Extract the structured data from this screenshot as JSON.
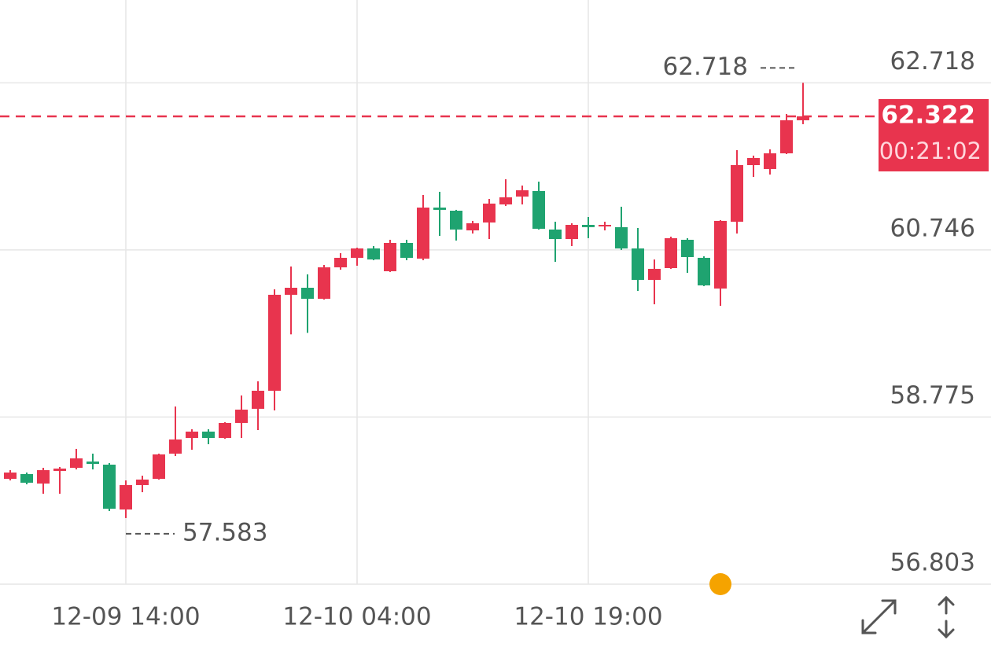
{
  "chart_data": {
    "type": "candlestick",
    "categories": [
      null,
      null,
      null,
      null,
      null,
      null,
      null,
      "12-09 14:00",
      null,
      null,
      null,
      null,
      null,
      null,
      null,
      null,
      null,
      null,
      null,
      null,
      null,
      "12-10 04:00",
      null,
      null,
      null,
      null,
      null,
      null,
      null,
      null,
      null,
      null,
      null,
      null,
      null,
      "12-10 19:00",
      null,
      null,
      null,
      null,
      null,
      null,
      null,
      null,
      null,
      null,
      null,
      null,
      null
    ],
    "open": [
      58.046,
      58.102,
      57.99,
      58.139,
      58.176,
      58.25,
      58.213,
      57.684,
      57.972,
      58.046,
      58.343,
      58.528,
      58.603,
      58.528,
      58.705,
      58.872,
      59.085,
      60.217,
      60.3,
      60.17,
      60.541,
      60.653,
      60.764,
      60.495,
      60.829,
      60.644,
      61.246,
      61.209,
      60.977,
      61.07,
      61.283,
      61.376,
      61.441,
      60.987,
      60.875,
      61.042,
      61.024,
      61.015,
      60.764,
      60.393,
      60.532,
      60.866,
      60.653,
      60.291,
      61.079,
      61.747,
      61.701,
      61.886,
      62.276
    ],
    "high": [
      58.148,
      58.12,
      58.176,
      58.185,
      58.399,
      58.343,
      58.232,
      58.027,
      58.083,
      58.343,
      58.899,
      58.631,
      58.631,
      58.714,
      59.029,
      59.196,
      60.282,
      60.551,
      60.458,
      60.569,
      60.708,
      60.773,
      60.792,
      60.866,
      60.866,
      61.395,
      61.432,
      61.219,
      61.089,
      61.348,
      61.58,
      61.506,
      61.552,
      61.079,
      61.061,
      61.135,
      61.079,
      61.256,
      61.005,
      60.634,
      60.903,
      60.885,
      60.671,
      61.098,
      61.924,
      61.859,
      61.933,
      62.35,
      62.718
    ],
    "low": [
      58.027,
      57.981,
      57.87,
      57.87,
      58.157,
      58.157,
      57.666,
      57.583,
      57.888,
      58.037,
      58.315,
      58.389,
      58.454,
      58.519,
      58.528,
      58.621,
      58.853,
      59.75,
      59.768,
      60.161,
      60.513,
      60.56,
      60.625,
      60.486,
      60.625,
      60.625,
      60.912,
      60.857,
      60.94,
      60.875,
      61.265,
      61.283,
      60.987,
      60.606,
      60.792,
      60.885,
      60.977,
      60.746,
      60.263,
      60.105,
      60.523,
      60.476,
      60.319,
      60.087,
      60.94,
      61.608,
      61.636,
      61.877,
      62.23
    ],
    "close": [
      58.12,
      58.0,
      58.148,
      58.167,
      58.287,
      58.222,
      57.693,
      57.972,
      58.037,
      58.334,
      58.51,
      58.603,
      58.528,
      58.705,
      58.862,
      59.085,
      60.217,
      60.3,
      60.17,
      60.541,
      60.653,
      60.764,
      60.634,
      60.829,
      60.653,
      61.246,
      61.219,
      60.987,
      61.061,
      61.293,
      61.367,
      61.45,
      60.996,
      60.875,
      61.042,
      61.015,
      61.042,
      60.764,
      60.393,
      60.523,
      60.885,
      60.662,
      60.328,
      61.089,
      61.747,
      61.831,
      61.886,
      62.276,
      62.322
    ],
    "up_color": "#e8344e",
    "down_color": "#1fa370",
    "ylim": [
      56.803,
      63.695
    ],
    "yticks": [
      56.803,
      58.775,
      60.746,
      62.718
    ],
    "grid": true,
    "current_price": 62.322,
    "countdown": "00:21:02"
  }
}
